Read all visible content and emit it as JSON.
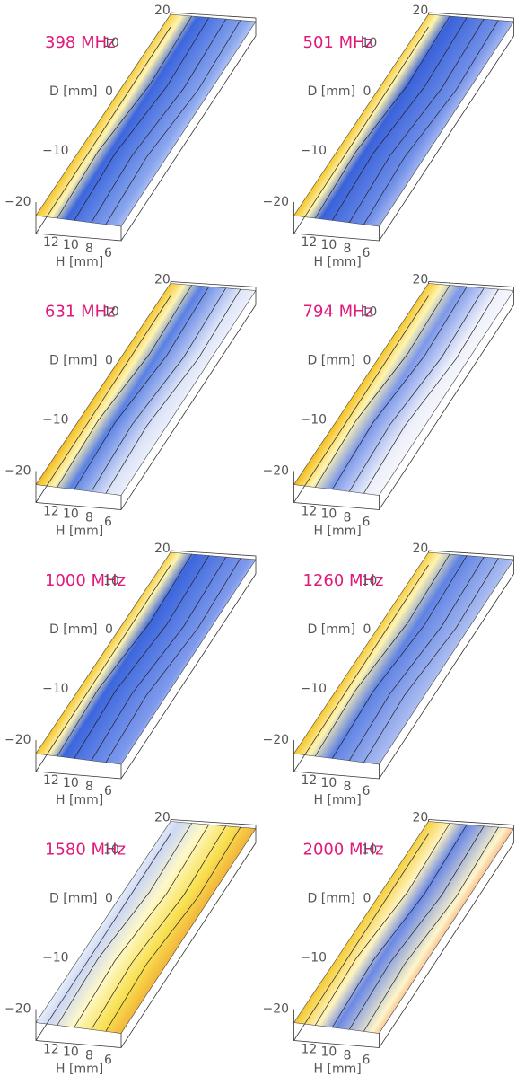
{
  "panels": [
    {
      "label": "398 MHz"
    },
    {
      "label": "501 MHz"
    },
    {
      "label": "631 MHz"
    },
    {
      "label": "794 MHz"
    },
    {
      "label": "1000 MHz"
    },
    {
      "label": "1260 MHz"
    },
    {
      "label": "1580 MHz"
    },
    {
      "label": "2000 MHz"
    }
  ],
  "axes": {
    "d_label": "D [mm]",
    "h_label": "H [mm]",
    "d_ticks": [
      "20",
      "10",
      "0",
      "−10",
      "−20"
    ],
    "h_ticks": [
      "12",
      "10",
      "8",
      "6"
    ]
  }
}
